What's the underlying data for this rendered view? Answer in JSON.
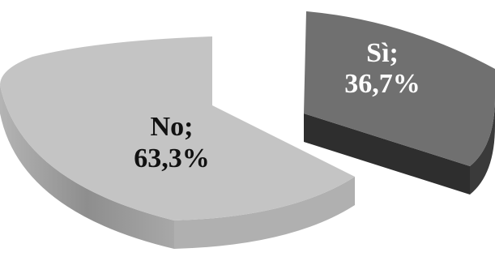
{
  "chart_data": {
    "type": "pie",
    "style": "3d-exploded",
    "slices": [
      {
        "label": "Sì",
        "value": 36.7,
        "display_line1": "Sì;",
        "display_line2": "36,7%",
        "color_top": "#707070",
        "color_side": "#3a3a3a",
        "text_color": "#ffffff"
      },
      {
        "label": "No",
        "value": 63.3,
        "display_line1": "No;",
        "display_line2": "63,3%",
        "color_top": "#c4c4c4",
        "color_side": "#9c9c9c",
        "text_color": "#111111"
      }
    ],
    "title": "",
    "legend": "none"
  }
}
